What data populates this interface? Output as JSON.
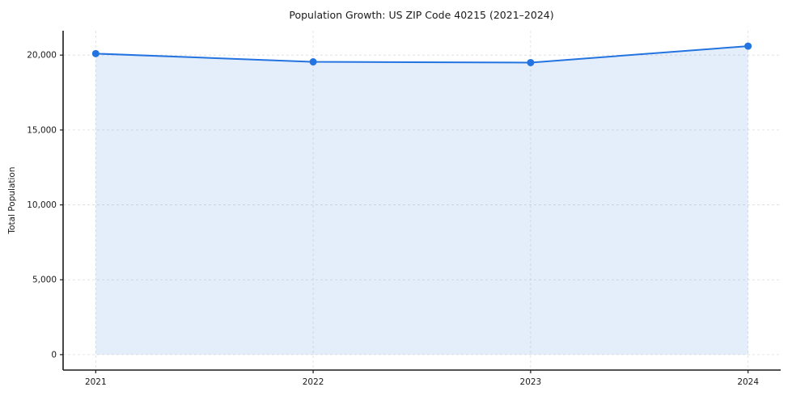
{
  "chart_data": {
    "type": "area",
    "title": "Population Growth: US ZIP Code 40215 (2021–2024)",
    "xlabel": "",
    "ylabel": "Total Population",
    "x": [
      2021,
      2022,
      2023,
      2024
    ],
    "series": [
      {
        "name": "Total Population",
        "values": [
          20100,
          19550,
          19500,
          20600
        ]
      }
    ],
    "x_tick_labels": [
      "2021",
      "2022",
      "2023",
      "2024"
    ],
    "y_ticks": [
      0,
      5000,
      10000,
      15000,
      20000
    ],
    "y_tick_labels": [
      "0",
      "5,000",
      "10,000",
      "15,000",
      "20,000"
    ],
    "xlim": [
      2020.85,
      2024.15
    ],
    "ylim": [
      -1030,
      21630
    ],
    "grid": true,
    "grid_style": "dashed",
    "legend": "none",
    "baseline": 0,
    "line_color": "#2373e0",
    "marker_color": "#2373e0",
    "fill_color": "#2373e0",
    "fill_opacity": 0.12,
    "grid_color": "#dcdcdc",
    "spine_color": "#1a1a1a",
    "text_color": "#1a1a1a"
  }
}
